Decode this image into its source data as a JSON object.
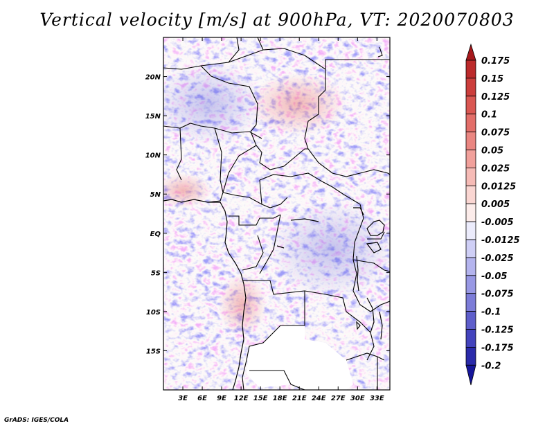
{
  "title": "Vertical velocity [m/s] at 900hPa, VT: 2020070803",
  "credit": "GrADS: IGES/COLA",
  "chart_data": {
    "type": "shaded-map",
    "variable": "Vertical velocity",
    "units": "m/s",
    "level": "900hPa",
    "valid_time": "2020070803",
    "region": "Central Africa",
    "lon_range": [
      0,
      35
    ],
    "lat_range": [
      -20,
      25
    ],
    "lon_ticks": [
      "3E",
      "6E",
      "9E",
      "12E",
      "15E",
      "18E",
      "21E",
      "24E",
      "27E",
      "30E",
      "33E"
    ],
    "lon_values": [
      3,
      6,
      9,
      12,
      15,
      18,
      21,
      24,
      27,
      30,
      33
    ],
    "lat_ticks": [
      "20N",
      "15N",
      "10N",
      "5N",
      "EQ",
      "5S",
      "10S",
      "15S"
    ],
    "lat_values": [
      20,
      15,
      10,
      5,
      0,
      -5,
      -10,
      -15
    ],
    "colorbar": {
      "labels": [
        "0.175",
        "0.15",
        "0.125",
        "0.1",
        "0.075",
        "0.05",
        "0.025",
        "0.0125",
        "0.005",
        "-0.005",
        "-0.0125",
        "-0.025",
        "-0.05",
        "-0.075",
        "-0.1",
        "-0.125",
        "-0.175",
        "-0.2"
      ],
      "colors": [
        "#a6181c",
        "#bc2a2b",
        "#cc3e3c",
        "#da5752",
        "#e36e69",
        "#ea8681",
        "#f1a09b",
        "#f6bbb6",
        "#fad6d2",
        "#fcecea",
        "#ececfc",
        "#cfcff6",
        "#b4b4ee",
        "#9898e4",
        "#7c7cd8",
        "#5e5ecb",
        "#4343bd",
        "#2a2aaa",
        "#16169a"
      ]
    },
    "colors": {
      "positive": "#e05555",
      "negative": "#5f5fd6",
      "border": "#000000"
    }
  }
}
